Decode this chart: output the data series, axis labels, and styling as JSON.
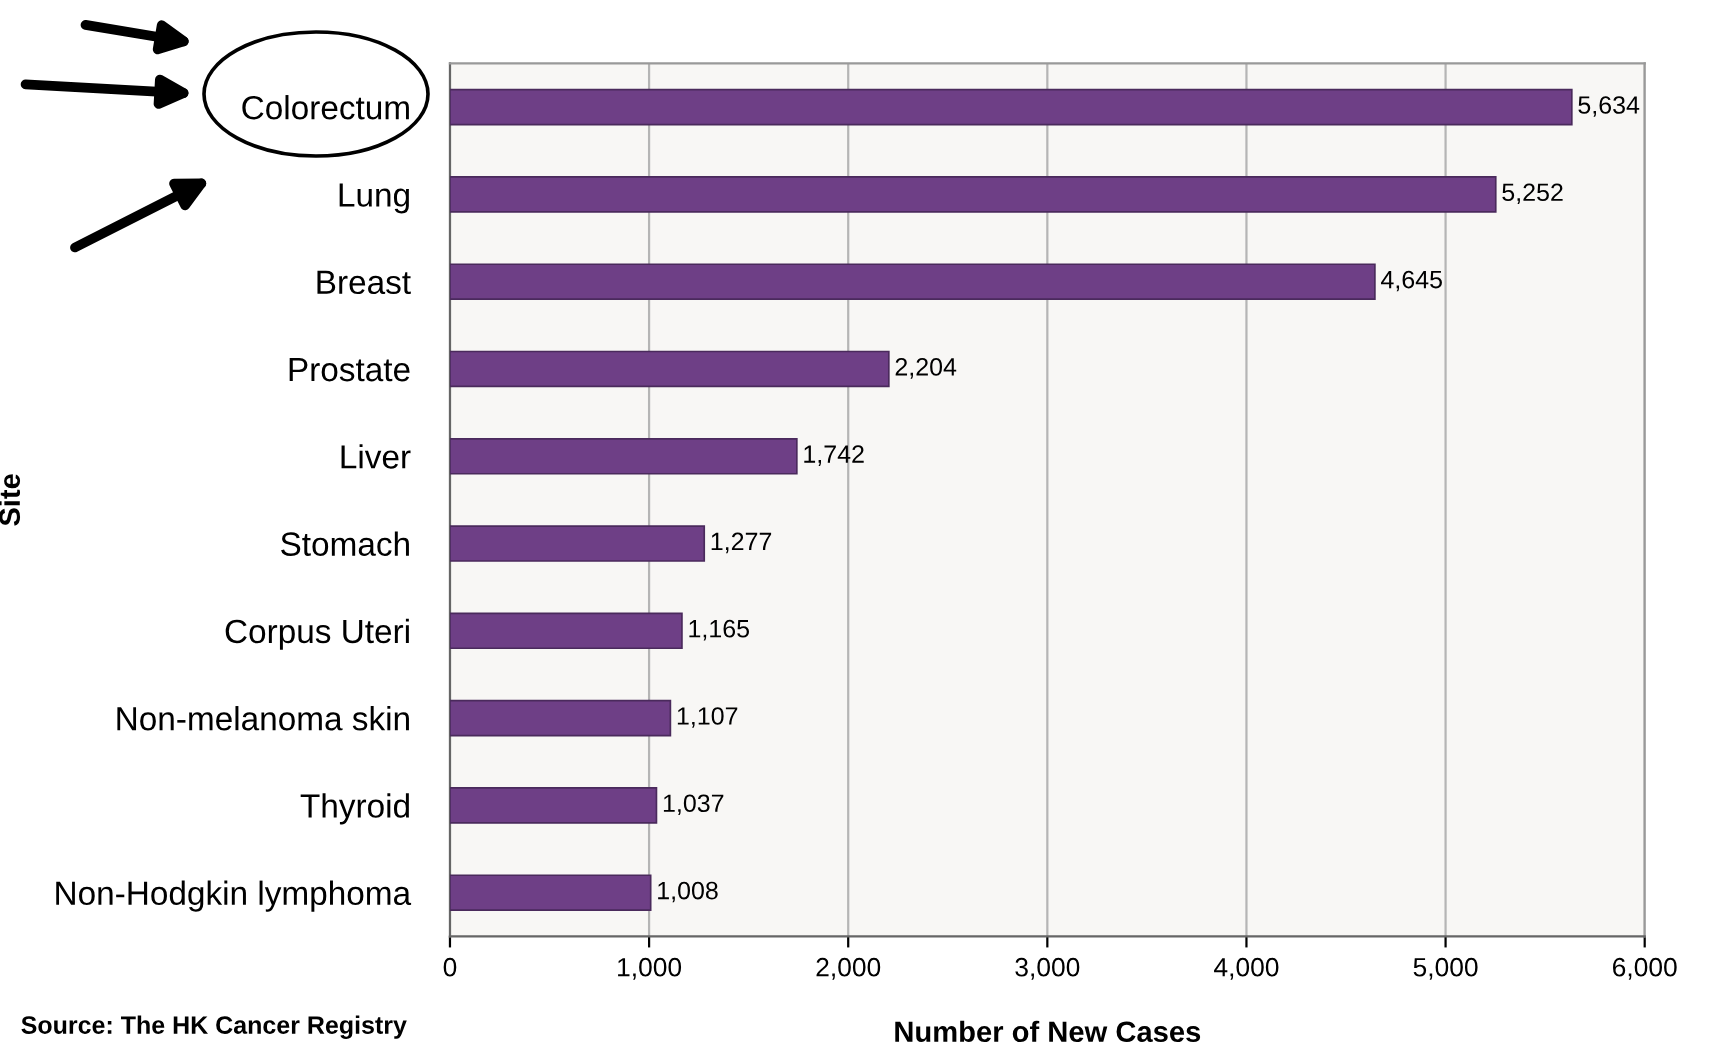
{
  "chart_data": {
    "type": "bar",
    "orientation": "horizontal",
    "xlabel": "Number of New Cases",
    "ylabel": "Site",
    "categories": [
      "Colorectum",
      "Lung",
      "Breast",
      "Prostate",
      "Liver",
      "Stomach",
      "Corpus Uteri",
      "Non-melanoma skin",
      "Thyroid",
      "Non-Hodgkin lymphoma"
    ],
    "values": [
      5634,
      5252,
      4645,
      2204,
      1742,
      1277,
      1165,
      1107,
      1037,
      1008
    ],
    "value_labels": [
      "5,634",
      "5,252",
      "4,645",
      "2,204",
      "1,742",
      "1,277",
      "1,165",
      "1,107",
      "1,037",
      "1,008"
    ],
    "color": "#6e3f86",
    "xlim": [
      0,
      6000
    ],
    "xticks": [
      0,
      {
        "value": 1000,
        "label": "1,000"
      },
      {
        "value": 2000,
        "label": "2,000"
      },
      {
        "value": 3000,
        "label": "3,000"
      },
      {
        "value": 4000,
        "label": "4,000"
      },
      {
        "value": 5000,
        "label": "5,000"
      },
      {
        "value": 6000,
        "label": "6,000"
      }
    ],
    "grid": "x",
    "annotations": [
      "Source: The HK Cancer Registry"
    ]
  }
}
